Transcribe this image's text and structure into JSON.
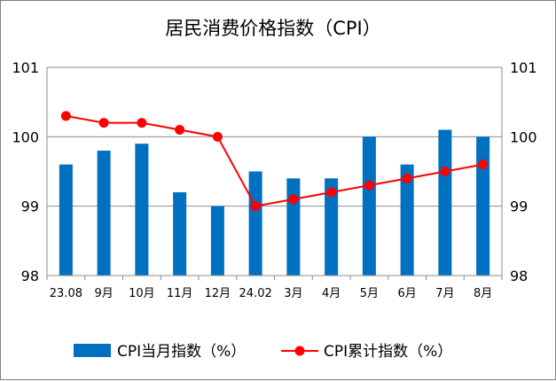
{
  "chart_data": {
    "type": "bar+line",
    "title": "居民消费价格指数（CPI）",
    "categories": [
      "23.08",
      "9月",
      "10月",
      "11月",
      "12月",
      "24.02",
      "3月",
      "4月",
      "5月",
      "6月",
      "7月",
      "8月"
    ],
    "series": [
      {
        "name": "CPI当月指数（%）",
        "type": "bar",
        "axis": "left",
        "color": "#0070c0",
        "values": [
          99.6,
          99.8,
          99.9,
          99.2,
          99.0,
          99.5,
          99.4,
          99.4,
          100.0,
          99.6,
          100.1,
          100.0
        ]
      },
      {
        "name": "CPI累计指数（%）",
        "type": "line",
        "axis": "right",
        "color": "#ff0000",
        "values": [
          100.3,
          100.2,
          100.2,
          100.1,
          100.0,
          99.0,
          99.1,
          99.2,
          99.3,
          99.4,
          99.5,
          99.6
        ]
      }
    ],
    "ylim": [
      98,
      101
    ],
    "yticks": [
      "98",
      "99",
      "100",
      "101"
    ],
    "y2lim": [
      98,
      101
    ],
    "y2ticks": [
      "98",
      "99",
      "100",
      "101"
    ],
    "grid": true,
    "legend": "bottom"
  }
}
